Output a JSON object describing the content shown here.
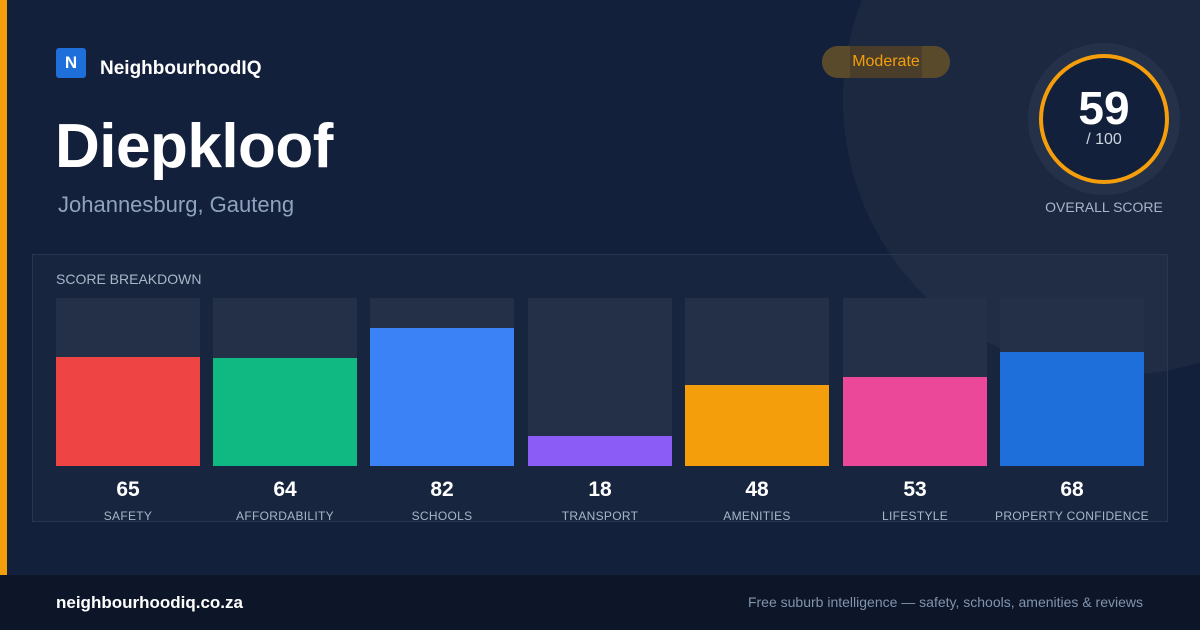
{
  "brand": {
    "logo_letter": "N",
    "name": "NeighbourhoodIQ"
  },
  "suburb": {
    "name": "Diepkloof",
    "location": "Johannesburg, Gauteng"
  },
  "rating_badge": {
    "label": "Moderate",
    "color": "#f59e0b"
  },
  "overall": {
    "score": "59",
    "max_label": "/ 100",
    "caption": "OVERALL SCORE",
    "ring_color": "#f59e0b"
  },
  "breakdown": {
    "title": "SCORE BREAKDOWN",
    "metrics": [
      {
        "value": 65,
        "label": "SAFETY",
        "color": "#ef4444"
      },
      {
        "value": 64,
        "label": "AFFORDABILITY",
        "color": "#10b981"
      },
      {
        "value": 82,
        "label": "SCHOOLS",
        "color": "#3b82f6"
      },
      {
        "value": 18,
        "label": "TRANSPORT",
        "color": "#8b5cf6"
      },
      {
        "value": 48,
        "label": "AMENITIES",
        "color": "#f59e0b"
      },
      {
        "value": 53,
        "label": "LIFESTYLE",
        "color": "#ec4899"
      },
      {
        "value": 68,
        "label": "PROPERTY CONFIDENCE",
        "color": "#1e6fd9"
      }
    ]
  },
  "footer": {
    "domain": "neighbourhoodiq.co.za",
    "tagline": "Free suburb intelligence — safety, schools, amenities & reviews"
  }
}
